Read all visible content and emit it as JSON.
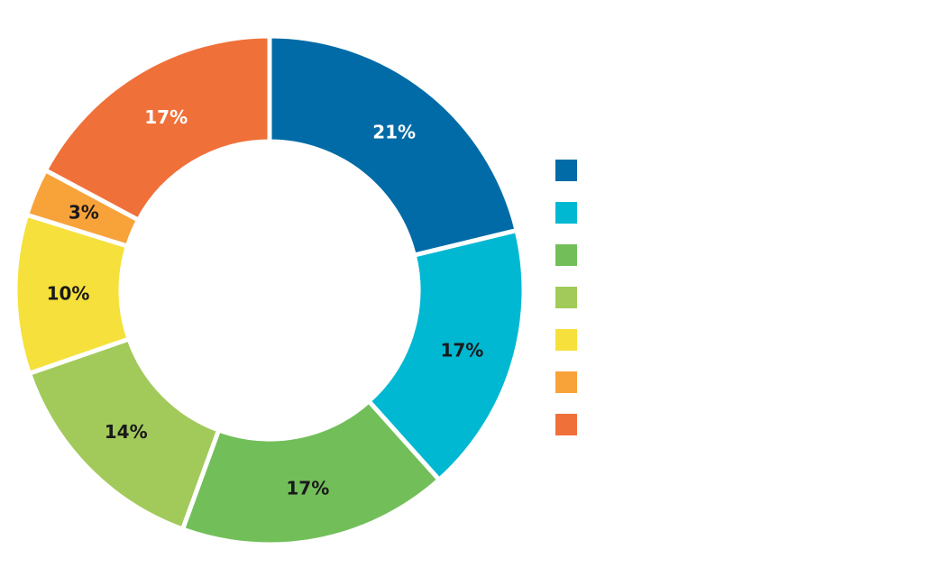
{
  "chart_data": {
    "type": "pie",
    "donut": true,
    "values": [
      21,
      17,
      17,
      14,
      10,
      3,
      17
    ],
    "labels": [
      "21%",
      "17%",
      "17%",
      "14%",
      "10%",
      "3%",
      "17%"
    ],
    "colors": [
      "#006ba6",
      "#00b8d2",
      "#72bf5a",
      "#a2ca5a",
      "#f6e03b",
      "#f8a23a",
      "#f0703a"
    ],
    "label_colors": [
      "#ffffff",
      "#1a1a1a",
      "#1a1a1a",
      "#1a1a1a",
      "#1a1a1a",
      "#1a1a1a",
      "#ffffff"
    ],
    "start_angle": "12 o'clock",
    "direction": "clockwise",
    "legend_position": "right",
    "legend_entries": [
      "",
      "",
      "",
      "",
      "",
      "",
      ""
    ]
  }
}
